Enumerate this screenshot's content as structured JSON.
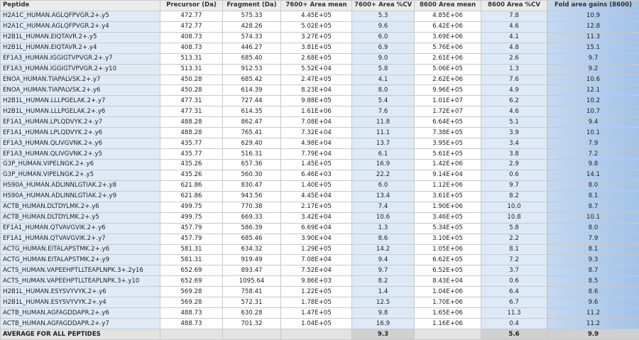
{
  "table": {
    "header": [
      "Peptide",
      "Precursor (Da)",
      "Fragment (Da)",
      "7600+ Area mean",
      "7600+ Area %CV",
      "8600 Area mean",
      "8600 Area %CV",
      "Fold area gains (8600)"
    ],
    "rows": [
      [
        "H2A1C_HUMAN.AGLQFPVGR.2+.y5",
        "472.77",
        "575.33",
        "4.45E+05",
        "5.3",
        "4.85E+06",
        "7.8",
        "10.9"
      ],
      [
        "H2A1C_HUMAN.AGLQFPVGR.2+.y4",
        "472.77",
        "428.26",
        "5.02E+05",
        "9.6",
        "6.42E+06",
        "4.6",
        "12.8"
      ],
      [
        "H2B1L_HUMAN.EIQTAVR.2+.y5",
        "408.73",
        "574.33",
        "3.27E+05",
        "6.0",
        "3.69E+06",
        "4.1",
        "11.3"
      ],
      [
        "H2B1L_HUMAN.EIQTAVR.2+.y4",
        "408.73",
        "446.27",
        "3.81E+05",
        "6.9",
        "5.76E+06",
        "4.8",
        "15.1"
      ],
      [
        "EF1A3_HUMAN.IGGIGTVPVGR.2+.y7",
        "513.31",
        "685.40",
        "2.68E+05",
        "9.0",
        "2.61E+06",
        "2.6",
        "9.7"
      ],
      [
        "EF1A3_HUMAN.IGGIGTVPVGR.2+.y10",
        "513.31",
        "912.53",
        "5.52E+04",
        "5.8",
        "5.06E+05",
        "1.3",
        "9.2"
      ],
      [
        "ENOA_HUMAN.TIAPALVSK.2+.y7",
        "450.28",
        "685.42",
        "2.47E+05",
        "4.1",
        "2.62E+06",
        "7.6",
        "10.6"
      ],
      [
        "ENOA_HUMAN.TIAPALVSK.2+.y6",
        "450.28",
        "614.39",
        "8.23E+04",
        "8.0",
        "9.96E+05",
        "4.9",
        "12.1"
      ],
      [
        "H2B1L_HUMAN.LLLPGELAK.2+.y7",
        "477.31",
        "727.44",
        "9.88E+05",
        "5.4",
        "1.01E+07",
        "6.2",
        "10.2"
      ],
      [
        "H2B1L_HUMAN.LLLPGELAK.2+.y6",
        "477.31",
        "614.35",
        "1.61E+06",
        "7.6",
        "1.72E+07",
        "4.6",
        "10.7"
      ],
      [
        "EF1A1_HUMAN.LPLQDVYK.2+.y7",
        "488.28",
        "862.47",
        "7.08E+04",
        "11.8",
        "6.64E+05",
        "5.1",
        "9.4"
      ],
      [
        "EF1A1_HUMAN.LPLQDVYK.2+.y6",
        "488.28",
        "765.41",
        "7.32E+04",
        "11.1",
        "7.38E+05",
        "3.9",
        "10.1"
      ],
      [
        "EF1A3_HUMAN.QLIVGVNK.2+.y6",
        "435.77",
        "629.40",
        "4.98E+04",
        "13.7",
        "3.95E+05",
        "3.4",
        "7.9"
      ],
      [
        "EF1A3_HUMAN.QLIVGVNK.2+.y5",
        "435.77",
        "516.31",
        "7.79E+04",
        "6.1",
        "5.61E+05",
        "3.8",
        "7.2"
      ],
      [
        "G3P_HUMAN.VIPELNGK.2+.y6",
        "435.26",
        "657.36",
        "1.45E+05",
        "16.9",
        "1.42E+06",
        "2.9",
        "9.8"
      ],
      [
        "G3P_HUMAN.VIPELNGK.2+.y5",
        "435.26",
        "560.30",
        "6.46E+03",
        "22.2",
        "9.14E+04",
        "0.6",
        "14.1"
      ],
      [
        "HS90A_HUMAN.ADLINNLGTIAK.2+.y8",
        "621.86",
        "830.47",
        "1.40E+05",
        "6.0",
        "1.12E+06",
        "9.7",
        "8.0"
      ],
      [
        "HS90A_HUMAN.ADLINNLGTIAK.2+.y9",
        "621.86",
        "943.56",
        "4.45E+04",
        "13.4",
        "3.61E+05",
        "8.2",
        "8.1"
      ],
      [
        "ACTB_HUMAN.DLTDYLMK.2+.y6",
        "499.75",
        "770.38",
        "2.17E+05",
        "7.4",
        "1.90E+06",
        "10.0",
        "8.7"
      ],
      [
        "ACTB_HUMAN.DLTDYLMK.2+.y5",
        "499.75",
        "669.33",
        "3.42E+04",
        "10.6",
        "3.46E+05",
        "10.8",
        "10.1"
      ],
      [
        "EF1A1_HUMAN.QTVAVGVIK.2+.y6",
        "457.79",
        "586.39",
        "6.69E+04",
        "1.3",
        "5.34E+05",
        "5.8",
        "8.0"
      ],
      [
        "EF1A1_HUMAN.QTVAVGVIK.2+.y7",
        "457.79",
        "685.46",
        "3.90E+04",
        "8.6",
        "3.10E+05",
        "2.2",
        "7.9"
      ],
      [
        "ACTG_HUMAN.EITALAPSTMK.2+.y6",
        "581.31",
        "634.32",
        "1.29E+05",
        "14.2",
        "1.05E+06",
        "8.1",
        "8.1"
      ],
      [
        "ACTG_HUMAN.EITALAPSTMK.2+.y9",
        "581.31",
        "919.49",
        "7.08E+04",
        "9.4",
        "6.62E+05",
        "7.2",
        "9.3"
      ],
      [
        "ACTS_HUMAN.VAPEEHPTLLTEAPLNPK.3+.2y16",
        "652.69",
        "893.47",
        "7.52E+04",
        "9.7",
        "6.52E+05",
        "3.7",
        "8.7"
      ],
      [
        "ACTS_HUMAN.VAPEEHPTLLTEAPLNPK.3+.y10",
        "652.69",
        "1095.64",
        "9.86E+03",
        "8.2",
        "8.43E+04",
        "0.6",
        "8.5"
      ],
      [
        "H2B1L_HUMAN.ESYSVYVYK.2+.y6",
        "569.28",
        "758.41",
        "1.22E+05",
        "1.4",
        "1.04E+06",
        "6.4",
        "8.6"
      ],
      [
        "H2B1L_HUMAN.ESYSVYVYK.2+.y4",
        "569.28",
        "572.31",
        "1.78E+05",
        "12.5",
        "1.70E+06",
        "6.7",
        "9.6"
      ],
      [
        "ACTB_HUMAN.AGFAGDDAPR.2+.y6",
        "488.73",
        "630.28",
        "1.47E+05",
        "9.8",
        "1.65E+06",
        "11.3",
        "11.2"
      ],
      [
        "ACTB_HUMAN.AGFAGDDAPR.2+.y7",
        "488.73",
        "701.32",
        "1.04E+05",
        "16.9",
        "1.16E+06",
        "0.4",
        "11.2"
      ]
    ],
    "average": {
      "label": "AVERAGE FOR ALL PEPTIDES",
      "cv_7600": "9.3",
      "cv_8600": "5.6",
      "fold": "9.9"
    }
  }
}
